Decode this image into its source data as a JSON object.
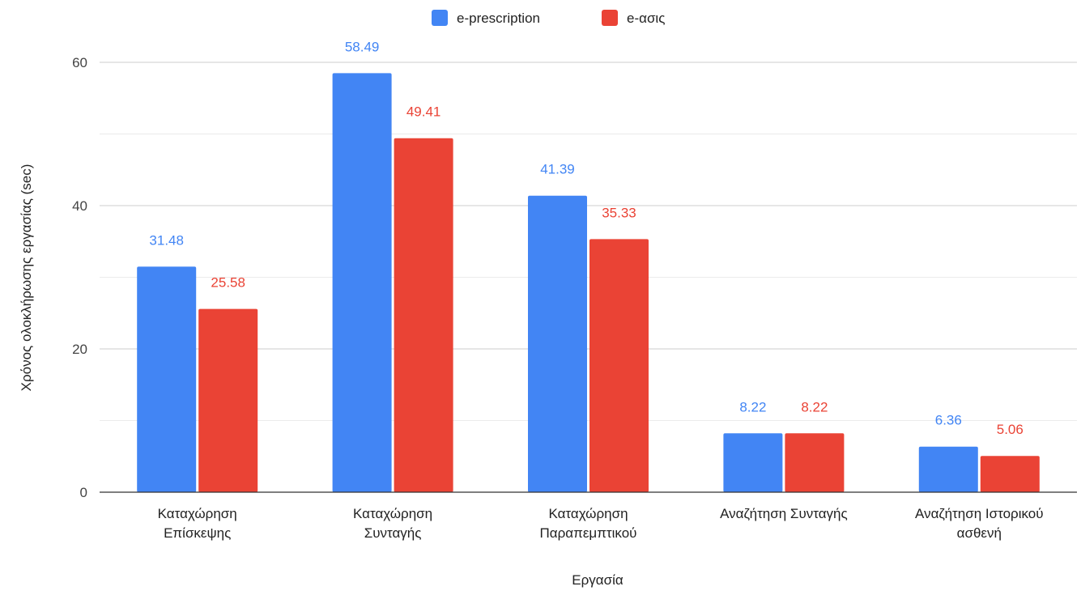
{
  "chart_data": {
    "type": "bar",
    "title": "",
    "xlabel": "Εργασία",
    "ylabel": "Χρόνος ολοκλήρωσης εργασίας (sec)",
    "ylim": [
      0,
      60
    ],
    "yticks": [
      0,
      20,
      40,
      60
    ],
    "grid": true,
    "legend_position": "top",
    "categories": [
      [
        "Καταχώρηση",
        "Επίσκεψης"
      ],
      [
        "Καταχώρηση",
        "Συνταγής"
      ],
      [
        "Καταχώρηση",
        "Παραπεμπτικού"
      ],
      [
        "Αναζήτηση Συνταγής"
      ],
      [
        "Αναζήτηση Ιστορικού",
        "ασθενή"
      ]
    ],
    "series": [
      {
        "name": "e-prescription",
        "color": "#4285F4",
        "values": [
          31.48,
          58.49,
          41.39,
          8.22,
          6.36
        ]
      },
      {
        "name": "e-ασις",
        "color": "#EA4335",
        "values": [
          25.58,
          49.41,
          35.33,
          8.22,
          5.06
        ]
      }
    ]
  }
}
